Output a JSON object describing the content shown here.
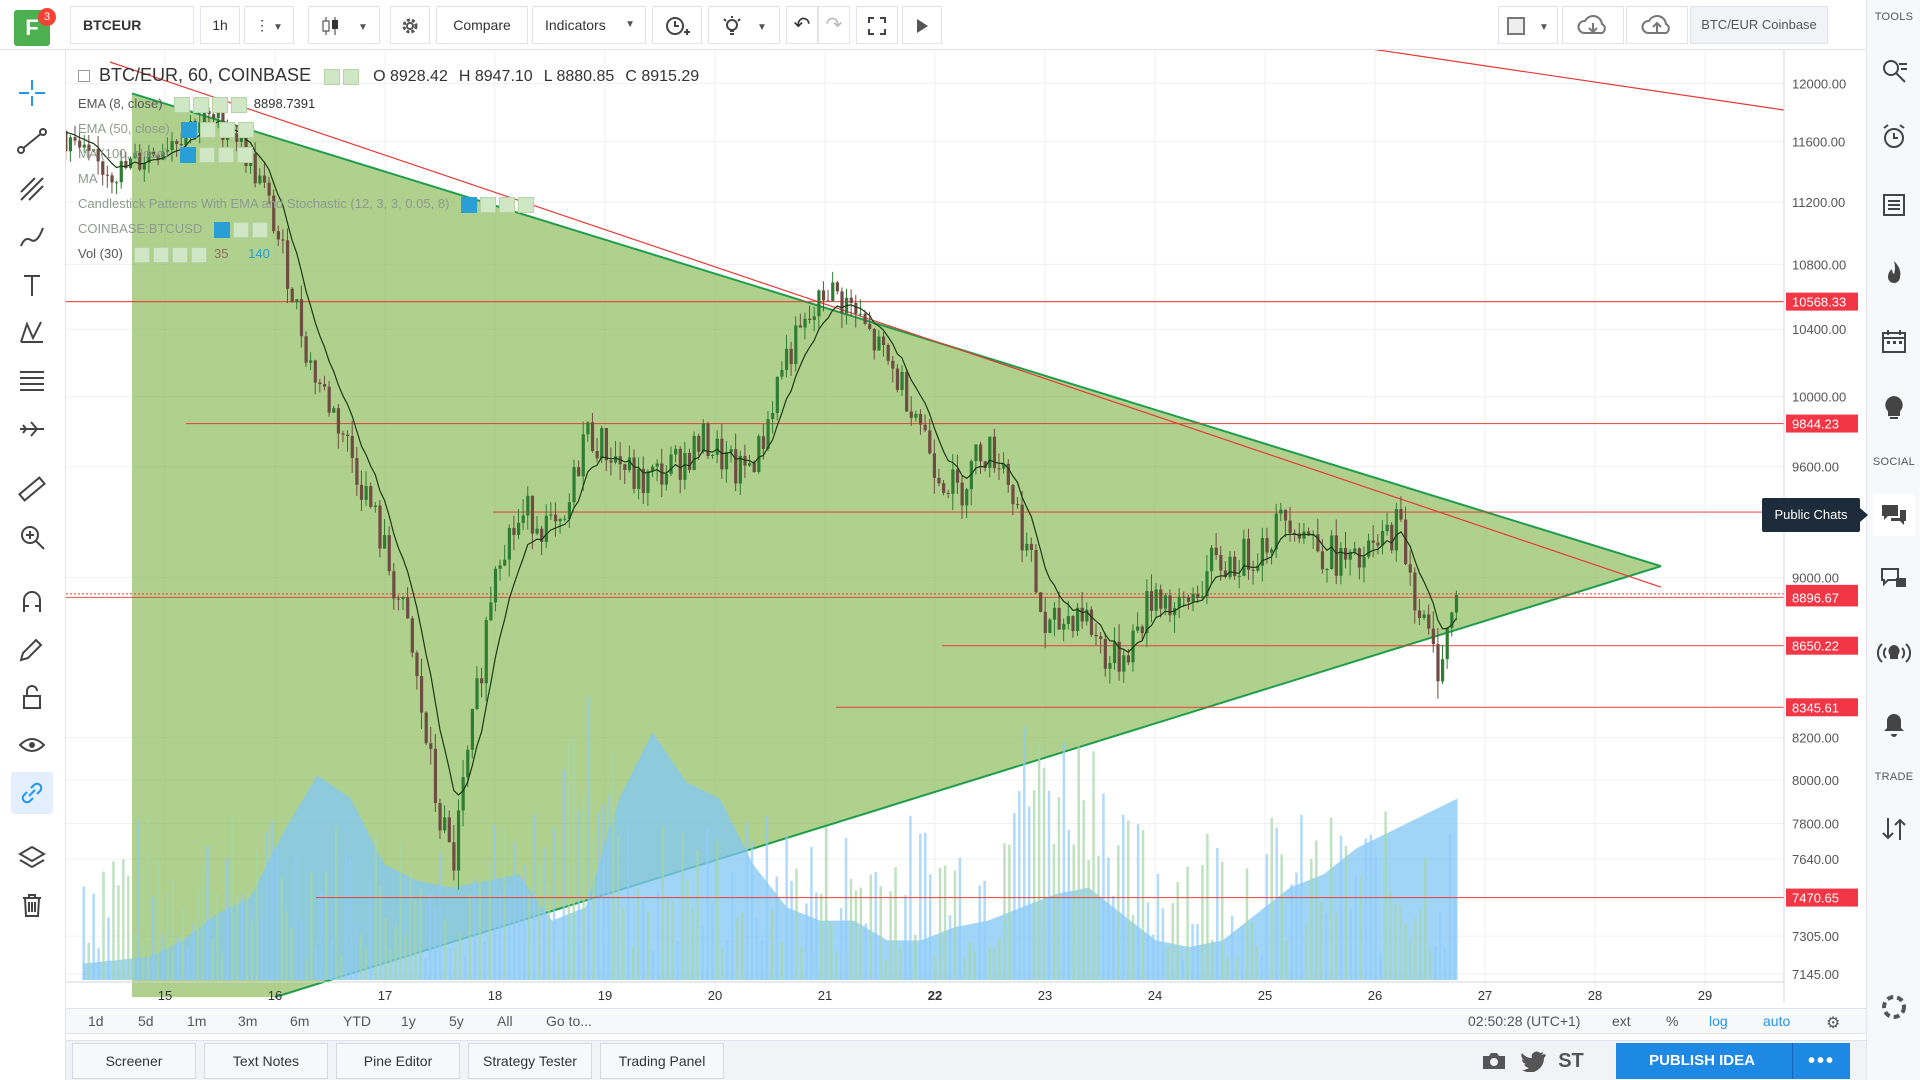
{
  "logo": {
    "letter": "F",
    "badge": "3"
  },
  "toolbar": {
    "symbol": "BTCEUR",
    "interval": "1h",
    "compare": "Compare",
    "indicators": "Indicators",
    "chart_name": "BTC/EUR Coinbase",
    "tools_label": "TOOLS"
  },
  "legend": {
    "title": "BTC/EUR, 60, COINBASE",
    "open": "O 8928.42",
    "high": "H 8947.10",
    "low": "L 8880.85",
    "close": "C 8915.29",
    "ema8": "EMA (8, close)",
    "ema8_value": "8898.7391",
    "ema50": "EMA (50, close)",
    "ma100": "MA (100, close)",
    "ma": "MA",
    "candle_patterns": "Candlestick Patterns With EMA and Stochastic (12, 3, 3, 0.05, 8)",
    "coinbase_btcusd": "COINBASE:BTCUSD",
    "vol": "Vol (30)",
    "vol_value": "35",
    "vol_value2": "140"
  },
  "right_sidebar": {
    "social_label": "SOCIAL",
    "trade_label": "TRADE",
    "tooltip": "Public Chats"
  },
  "colors": {
    "triangle_fill": "#7cb342",
    "triangle_line": "#1e9e4a",
    "level_line": "#e53935",
    "volume_area": "#81c7f5",
    "up_candle": "#2e7d32",
    "down_candle": "#6d4c41",
    "label_bg": "#f23645"
  },
  "range_bar": {
    "buttons": [
      "1d",
      "5d",
      "1m",
      "3m",
      "6m",
      "YTD",
      "1y",
      "5y",
      "All",
      "Go to..."
    ],
    "time": "02:50:28 (UTC+1)",
    "ext": "ext",
    "percent": "%",
    "log": "log",
    "auto": "auto"
  },
  "bottom_panel": {
    "tabs": [
      "Screener",
      "Text Notes",
      "Pine Editor",
      "Strategy Tester",
      "Trading Panel"
    ],
    "st": "ST",
    "publish": "PUBLISH IDEA"
  },
  "chart_data": {
    "type": "candlestick",
    "symbol": "BTC/EUR",
    "interval": "60",
    "exchange": "COINBASE",
    "x_ticks": [
      "15",
      "16",
      "17",
      "18",
      "19",
      "20",
      "21",
      "22",
      "23",
      "24",
      "25",
      "26",
      "27",
      "28",
      "29"
    ],
    "y_ticks": [
      12000.0,
      11600.0,
      11200.0,
      10800.0,
      10400.0,
      10000.0,
      9600.0,
      9000.0,
      8200.0,
      8000.0,
      7800.0,
      7640.0,
      7305.0,
      7145.0
    ],
    "price_labels": [
      "10568.33",
      "9844.23",
      "9350.00",
      "8915.29",
      "8896.67",
      "8650.22",
      "8345.61",
      "7470.65"
    ],
    "last_price": 8915.29,
    "drawings": {
      "triangle_upper": [
        {
          "day": 14.7,
          "price": 11930
        },
        {
          "day": 28.6,
          "price": 9060
        }
      ],
      "triangle_lower": [
        {
          "day": 16.0,
          "price": 7050
        },
        {
          "day": 28.6,
          "price": 9060
        }
      ],
      "downtrend_line": [
        {
          "day": 14.5,
          "price": 12150
        },
        {
          "day": 28.6,
          "price": 8950
        }
      ],
      "horizontal_levels": [
        10568.33,
        9844.23,
        9350.0,
        8896.67,
        8650.22,
        8345.61,
        7470.65
      ]
    },
    "close_path": [
      {
        "day": 14.0,
        "price": 11700
      },
      {
        "day": 14.3,
        "price": 11450
      },
      {
        "day": 14.6,
        "price": 11400
      },
      {
        "day": 14.9,
        "price": 11550
      },
      {
        "day": 15.3,
        "price": 11750
      },
      {
        "day": 15.6,
        "price": 11700
      },
      {
        "day": 15.9,
        "price": 11250
      },
      {
        "day": 16.1,
        "price": 10750
      },
      {
        "day": 16.3,
        "price": 10200
      },
      {
        "day": 16.6,
        "price": 9800
      },
      {
        "day": 16.9,
        "price": 9300
      },
      {
        "day": 17.2,
        "price": 8700
      },
      {
        "day": 17.45,
        "price": 7900
      },
      {
        "day": 17.6,
        "price": 7600
      },
      {
        "day": 17.8,
        "price": 8300
      },
      {
        "day": 18.0,
        "price": 9150
      },
      {
        "day": 18.3,
        "price": 9350
      },
      {
        "day": 18.6,
        "price": 9200
      },
      {
        "day": 18.8,
        "price": 9800
      },
      {
        "day": 19.0,
        "price": 9700
      },
      {
        "day": 19.3,
        "price": 9500
      },
      {
        "day": 19.6,
        "price": 9600
      },
      {
        "day": 19.9,
        "price": 9750
      },
      {
        "day": 20.2,
        "price": 9550
      },
      {
        "day": 20.4,
        "price": 9700
      },
      {
        "day": 20.6,
        "price": 10200
      },
      {
        "day": 20.9,
        "price": 10500
      },
      {
        "day": 21.0,
        "price": 10650
      },
      {
        "day": 21.2,
        "price": 10550
      },
      {
        "day": 21.5,
        "price": 10250
      },
      {
        "day": 21.8,
        "price": 9950
      },
      {
        "day": 22.0,
        "price": 9600
      },
      {
        "day": 22.2,
        "price": 9450
      },
      {
        "day": 22.4,
        "price": 9700
      },
      {
        "day": 22.6,
        "price": 9650
      },
      {
        "day": 22.8,
        "price": 9200
      },
      {
        "day": 23.0,
        "price": 8700
      },
      {
        "day": 23.3,
        "price": 8850
      },
      {
        "day": 23.6,
        "price": 8550
      },
      {
        "day": 23.8,
        "price": 8700
      },
      {
        "day": 24.0,
        "price": 8950
      },
      {
        "day": 24.2,
        "price": 8800
      },
      {
        "day": 24.5,
        "price": 9050
      },
      {
        "day": 24.8,
        "price": 9100
      },
      {
        "day": 25.0,
        "price": 9200
      },
      {
        "day": 25.2,
        "price": 9350
      },
      {
        "day": 25.5,
        "price": 9150
      },
      {
        "day": 25.8,
        "price": 9050
      },
      {
        "day": 26.0,
        "price": 9150
      },
      {
        "day": 26.2,
        "price": 9300
      },
      {
        "day": 26.4,
        "price": 8800
      },
      {
        "day": 26.55,
        "price": 8550
      },
      {
        "day": 26.75,
        "price": 8915
      }
    ]
  }
}
